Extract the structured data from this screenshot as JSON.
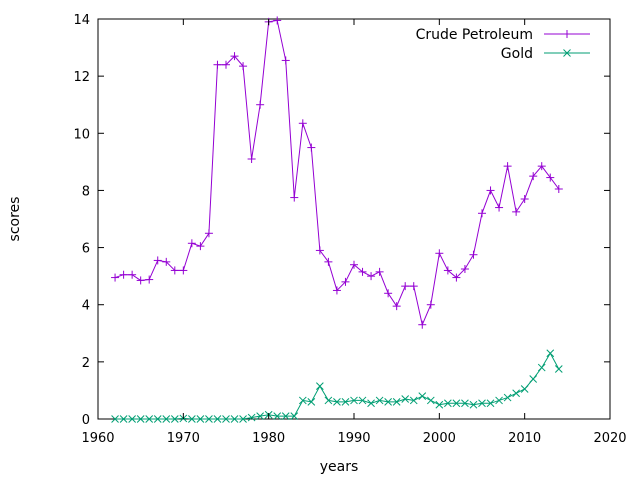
{
  "chart_data": {
    "type": "line",
    "xlabel": "years",
    "ylabel": "scores",
    "xlim": [
      1960,
      2020
    ],
    "ylim": [
      0,
      14
    ],
    "xticks": [
      1960,
      1970,
      1980,
      1990,
      2000,
      2010,
      2020
    ],
    "yticks": [
      0,
      2,
      4,
      6,
      8,
      10,
      12,
      14
    ],
    "grid": false,
    "legend": "top-right",
    "x": [
      1962,
      1963,
      1964,
      1965,
      1966,
      1967,
      1968,
      1969,
      1970,
      1971,
      1972,
      1973,
      1974,
      1975,
      1976,
      1977,
      1978,
      1979,
      1980,
      1981,
      1982,
      1983,
      1984,
      1985,
      1986,
      1987,
      1988,
      1989,
      1990,
      1991,
      1992,
      1993,
      1994,
      1995,
      1996,
      1997,
      1998,
      1999,
      2000,
      2001,
      2002,
      2003,
      2004,
      2005,
      2006,
      2007,
      2008,
      2009,
      2010,
      2011,
      2012,
      2013,
      2014
    ],
    "series": [
      {
        "name": "Crude Petroleum",
        "color": "#9400d3",
        "marker": "plus",
        "values": [
          4.95,
          5.05,
          5.05,
          4.85,
          4.88,
          5.55,
          5.5,
          5.2,
          5.2,
          6.15,
          6.05,
          6.5,
          12.4,
          12.4,
          12.7,
          12.35,
          9.1,
          11.0,
          13.9,
          13.95,
          12.55,
          7.75,
          10.35,
          9.5,
          5.9,
          5.5,
          4.5,
          4.8,
          5.4,
          5.15,
          5.0,
          5.15,
          4.4,
          3.95,
          4.65,
          4.65,
          3.3,
          4.0,
          5.8,
          5.2,
          4.95,
          5.25,
          5.75,
          7.2,
          8.0,
          7.4,
          8.85,
          7.25,
          7.7,
          8.5,
          8.85,
          8.45,
          8.05
        ]
      },
      {
        "name": "Gold",
        "color": "#009e73",
        "marker": "cross",
        "values": [
          0.0,
          0.0,
          0.0,
          0.0,
          0.0,
          0.0,
          0.0,
          0.0,
          0.02,
          0.0,
          0.0,
          0.0,
          0.0,
          0.0,
          0.0,
          0.0,
          0.05,
          0.1,
          0.15,
          0.1,
          0.1,
          0.1,
          0.65,
          0.6,
          1.15,
          0.65,
          0.6,
          0.6,
          0.65,
          0.65,
          0.55,
          0.65,
          0.6,
          0.6,
          0.7,
          0.65,
          0.8,
          0.65,
          0.5,
          0.55,
          0.55,
          0.55,
          0.5,
          0.55,
          0.55,
          0.65,
          0.75,
          0.9,
          1.05,
          1.4,
          1.8,
          2.3,
          1.75
        ]
      }
    ]
  }
}
